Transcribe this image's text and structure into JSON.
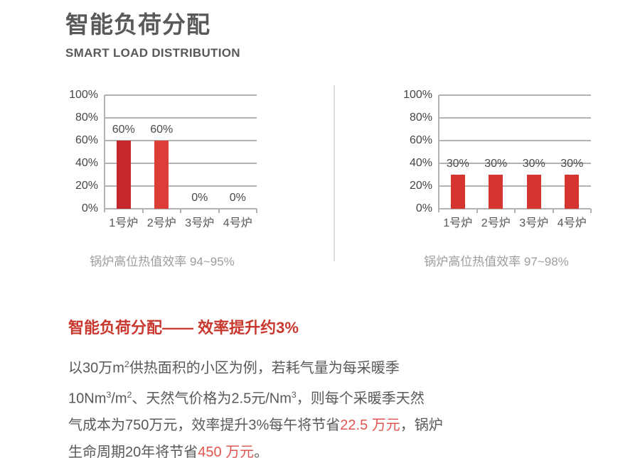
{
  "header": {
    "title": "智能负荷分配",
    "subtitle": "SMART LOAD DISTRIBUTION"
  },
  "chart_data": [
    {
      "type": "bar",
      "categories": [
        "1号炉",
        "2号炉",
        "3号炉",
        "4号炉"
      ],
      "values": [
        60,
        60,
        0,
        0
      ],
      "value_labels": [
        "60%",
        "60%",
        "0%",
        "0%"
      ],
      "bar_colors": [
        "#c4282d",
        "#dc3e37",
        "#dc3e37",
        "#dc3e37"
      ],
      "y_ticks": [
        "100%",
        "80%",
        "60%",
        "40%",
        "20%",
        "0%"
      ],
      "ylim": [
        0,
        100
      ],
      "grid": true,
      "legend": false,
      "caption": "锅炉高位热值效率 94~95%"
    },
    {
      "type": "bar",
      "categories": [
        "1号炉",
        "2号炉",
        "3号炉",
        "4号炉"
      ],
      "values": [
        30,
        30,
        30,
        30
      ],
      "value_labels": [
        "30%",
        "30%",
        "30%",
        "30%"
      ],
      "bar_colors": [
        "#d53531",
        "#d53531",
        "#d53531",
        "#d53531"
      ],
      "y_ticks": [
        "100%",
        "80%",
        "60%",
        "40%",
        "20%",
        "0%"
      ],
      "ylim": [
        0,
        100
      ],
      "grid": true,
      "legend": false,
      "caption": "锅炉高位热值效率 97~98%"
    }
  ],
  "section": {
    "headline": "智能负荷分配—— 效率提升约3%",
    "lines": [
      [
        {
          "t": "以30万m"
        },
        {
          "t": "2",
          "sup": true
        },
        {
          "t": "供热面积的小区为例，若耗气量为每采暖季"
        }
      ],
      [
        {
          "t": "10Nm"
        },
        {
          "t": "3",
          "sup": true
        },
        {
          "t": "/m"
        },
        {
          "t": "2",
          "sup": true
        },
        {
          "t": "、天然气价格为2.5元/Nm"
        },
        {
          "t": "3",
          "sup": true
        },
        {
          "t": "，则每个采暖季天然"
        }
      ],
      [
        {
          "t": "气成本为750万元，效率提升3%每午将节省"
        },
        {
          "t": "22.5 万元",
          "red": true
        },
        {
          "t": "，锅炉"
        }
      ],
      [
        {
          "t": "生命周期20年将节省"
        },
        {
          "t": "450 万元",
          "red": true
        },
        {
          "t": "。"
        }
      ]
    ]
  },
  "colors": {
    "title_gray": "#58595b",
    "body_gray": "#595959",
    "caption_gray": "#9d9d9d",
    "headline_red": "#c9382e",
    "inline_red": "#e15550",
    "grid_gray": "#b2b2b2",
    "divider_gray": "#dedede",
    "bar_dark_red": "#c4282d",
    "bar_red": "#dc3e37"
  }
}
